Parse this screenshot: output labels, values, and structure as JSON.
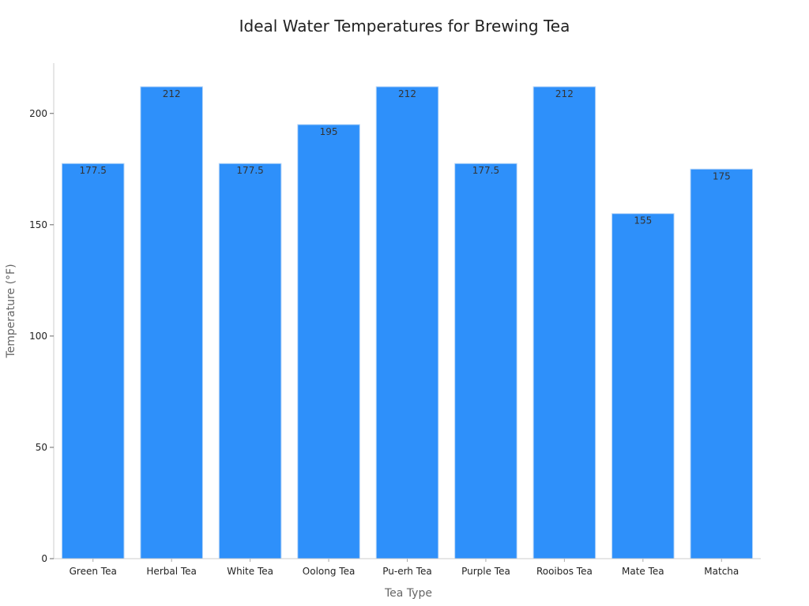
{
  "chart_data": {
    "type": "bar",
    "title": "Ideal Water Temperatures for Brewing Tea",
    "xlabel": "Tea Type",
    "ylabel": "Temperature (°F)",
    "categories": [
      "Green Tea",
      "Herbal Tea",
      "White Tea",
      "Oolong Tea",
      "Pu-erh Tea",
      "Purple Tea",
      "Rooibos Tea",
      "Mate Tea",
      "Matcha"
    ],
    "values": [
      177.5,
      212,
      177.5,
      195,
      212,
      177.5,
      212,
      155,
      175
    ],
    "data_labels": [
      "177.5",
      "212",
      "177.5",
      "195",
      "212",
      "177.5",
      "212",
      "155",
      "175"
    ],
    "yticks": [
      0,
      50,
      100,
      150,
      200
    ],
    "ytick_labels": [
      "0",
      "50",
      "100",
      "150",
      "200"
    ],
    "ylim": [
      0,
      222.6
    ],
    "grid": false,
    "legend": "none",
    "bar_color": "#2e90fa",
    "bar_edge_color": "#b8d6f7"
  }
}
